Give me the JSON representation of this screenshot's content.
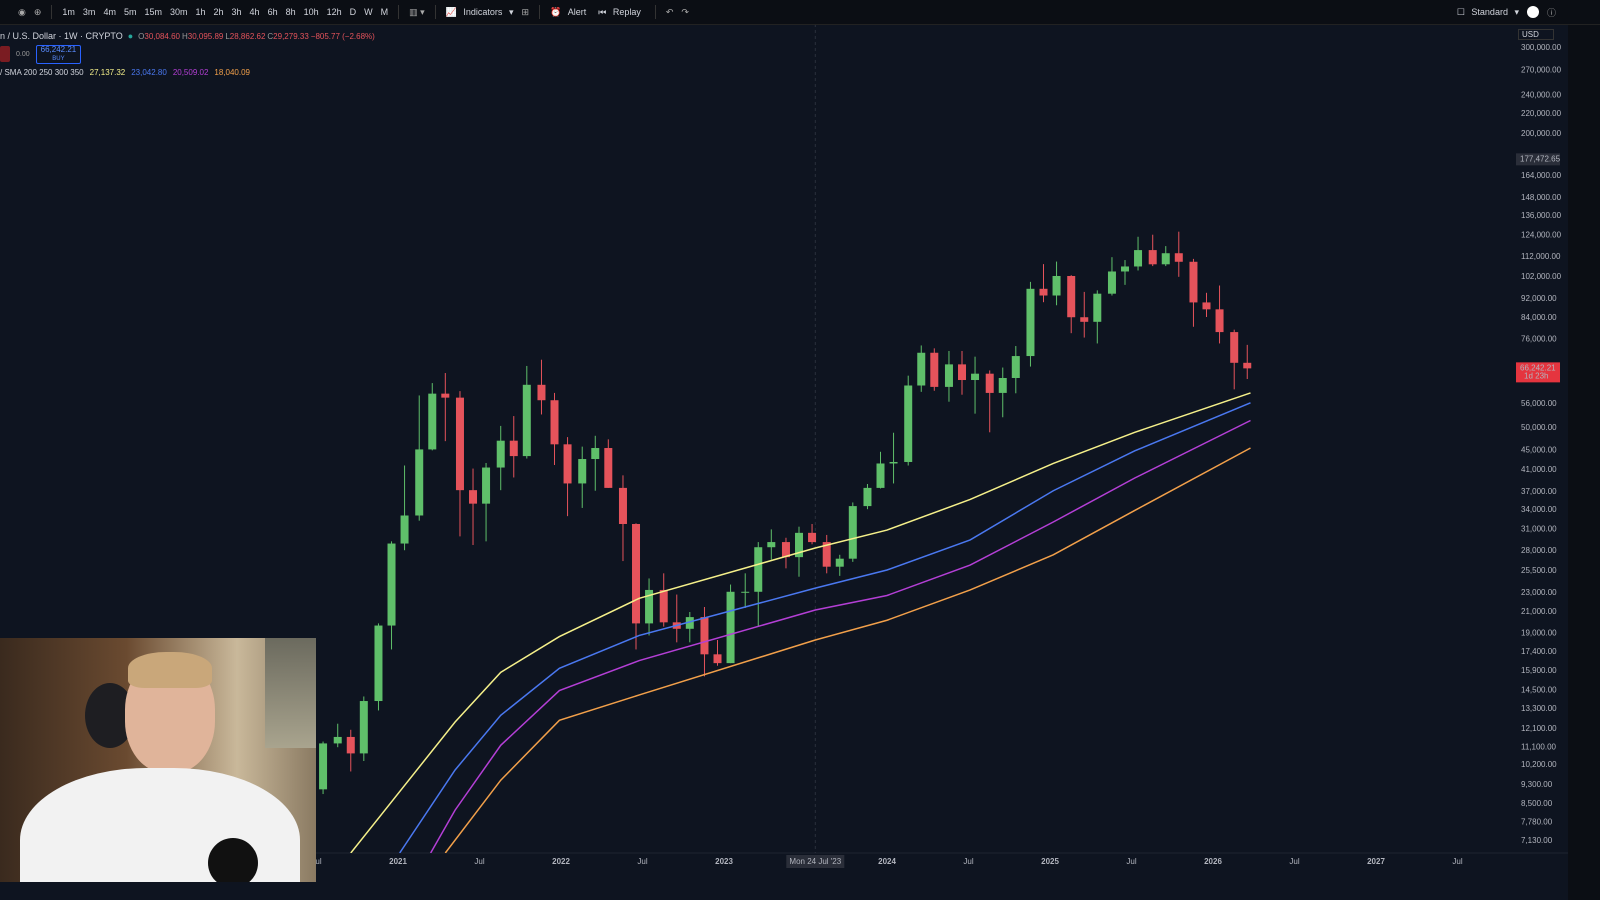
{
  "toolbar": {
    "intervals": [
      "1m",
      "3m",
      "4m",
      "5m",
      "15m",
      "30m",
      "1h",
      "2h",
      "3h",
      "4h",
      "6h",
      "8h",
      "10h",
      "12h",
      "D",
      "W",
      "M"
    ],
    "indicators": "Indicators",
    "alert": "Alert",
    "replay": "Replay",
    "layout": "Standard",
    "currency": "USD"
  },
  "legend": {
    "symbol": "n / U.S. Dollar · 1W · CRYPTO",
    "ohlc": [
      {
        "k": "O",
        "v": "30,084.60"
      },
      {
        "k": "H",
        "v": "30,095.89"
      },
      {
        "k": "L",
        "v": "28,862.62"
      },
      {
        "k": "C",
        "v": "29,279.33"
      }
    ],
    "change": "−805.77 (−2.68%)",
    "buy_price": "66,242.21",
    "buy": "BUY",
    "spread": "0.00",
    "sma_title": "/ SMA 200 250 300 350",
    "sma_values": [
      "27,137.32",
      "23,042.80",
      "20,509.02",
      "18,040.09"
    ]
  },
  "chart_data": {
    "type": "candlestick",
    "log_scale": true,
    "grid": false,
    "up_color": "#5fbf6a",
    "down_color": "#e5535b",
    "xlim": [
      2018.558,
      2027.822
    ],
    "ylim": [
      6740,
      336000
    ],
    "xticks": [
      {
        "value": 2020.5,
        "label": "Jul"
      },
      2021,
      {
        "value": 2021.5,
        "label": "Jul"
      },
      2022,
      {
        "value": 2022.5,
        "label": "Jul"
      },
      2023,
      2024,
      {
        "value": 2024.5,
        "label": "Jul"
      },
      2025,
      {
        "value": 2025.5,
        "label": "Jul"
      },
      2026,
      {
        "value": 2026.5,
        "label": "Jul"
      },
      2027,
      {
        "value": 2027.5,
        "label": "Jul"
      }
    ],
    "yticks": [
      {
        "value": 300000,
        "label": "300,000.00"
      },
      {
        "value": 270000,
        "label": "270,000.00"
      },
      {
        "value": 240000,
        "label": "240,000.00"
      },
      {
        "value": 220000,
        "label": "220,000.00"
      },
      {
        "value": 200000,
        "label": "200,000.00"
      },
      {
        "value": 164000,
        "label": "164,000.00"
      },
      {
        "value": 148000,
        "label": "148,000.00"
      },
      {
        "value": 136000,
        "label": "136,000.00"
      },
      {
        "value": 124000,
        "label": "124,000.00"
      },
      {
        "value": 112000,
        "label": "112,000.00"
      },
      {
        "value": 102000,
        "label": "102,000.00"
      },
      {
        "value": 92000,
        "label": "92,000.00"
      },
      {
        "value": 84000,
        "label": "84,000.00"
      },
      {
        "value": 76000,
        "label": "76,000.00"
      },
      {
        "value": 56000,
        "label": "56,000.00"
      },
      {
        "value": 50000,
        "label": "50,000.00"
      },
      {
        "value": 45000,
        "label": "45,000.00"
      },
      {
        "value": 41000,
        "label": "41,000.00"
      },
      {
        "value": 37000,
        "label": "37,000.00"
      },
      {
        "value": 34000,
        "label": "34,000.00"
      },
      {
        "value": 31000,
        "label": "31,000.00"
      },
      {
        "value": 28000,
        "label": "28,000.00"
      },
      {
        "value": 25500,
        "label": "25,500.00"
      },
      {
        "value": 23000,
        "label": "23,000.00"
      },
      {
        "value": 21000,
        "label": "21,000.00"
      },
      {
        "value": 19000,
        "label": "19,000.00"
      },
      {
        "value": 17400,
        "label": "17,400.00"
      },
      {
        "value": 15900,
        "label": "15,900.00"
      },
      {
        "value": 14500,
        "label": "14,500.00"
      },
      {
        "value": 13300,
        "label": "13,300.00"
      },
      {
        "value": 12100,
        "label": "12,100.00"
      },
      {
        "value": 11100,
        "label": "11,100.00"
      },
      {
        "value": 10200,
        "label": "10,200.00"
      },
      {
        "value": 9300,
        "label": "9,300.00"
      },
      {
        "value": 8500,
        "label": "8,500.00"
      },
      {
        "value": 7780,
        "label": "7,780.00"
      },
      {
        "value": 7130,
        "label": "7,130.00"
      }
    ],
    "price_labels": [
      {
        "value": 177472.65,
        "label": "177,472.65"
      },
      {
        "value": 66242.21,
        "label": "66,242.21",
        "countdown": "1d 23h"
      }
    ],
    "crosshair": {
      "x": 2023.56,
      "label": "Mon 24 Jul '23"
    },
    "candles": [
      {
        "x": 2020.54,
        "open": 9100,
        "high": 11400,
        "low": 8900,
        "close": 11300
      },
      {
        "x": 2020.63,
        "open": 11300,
        "high": 12400,
        "low": 11100,
        "close": 11650
      },
      {
        "x": 2020.71,
        "open": 11650,
        "high": 12050,
        "low": 9900,
        "close": 10780
      },
      {
        "x": 2020.79,
        "open": 10780,
        "high": 14100,
        "low": 10400,
        "close": 13800
      },
      {
        "x": 2020.88,
        "open": 13800,
        "high": 19900,
        "low": 13200,
        "close": 19700
      },
      {
        "x": 2020.96,
        "open": 19700,
        "high": 29300,
        "low": 17600,
        "close": 29000
      },
      {
        "x": 2021.04,
        "open": 29000,
        "high": 41900,
        "low": 28100,
        "close": 33100
      },
      {
        "x": 2021.13,
        "open": 33100,
        "high": 58300,
        "low": 32300,
        "close": 45200
      },
      {
        "x": 2021.21,
        "open": 45200,
        "high": 61800,
        "low": 45000,
        "close": 58800
      },
      {
        "x": 2021.29,
        "open": 58800,
        "high": 64800,
        "low": 47000,
        "close": 57700
      },
      {
        "x": 2021.38,
        "open": 57700,
        "high": 59500,
        "low": 30000,
        "close": 37300
      },
      {
        "x": 2021.46,
        "open": 37300,
        "high": 41300,
        "low": 28800,
        "close": 35000
      },
      {
        "x": 2021.54,
        "open": 35000,
        "high": 42400,
        "low": 29300,
        "close": 41500
      },
      {
        "x": 2021.63,
        "open": 41500,
        "high": 50500,
        "low": 37300,
        "close": 47100
      },
      {
        "x": 2021.71,
        "open": 47100,
        "high": 52900,
        "low": 39600,
        "close": 43800
      },
      {
        "x": 2021.79,
        "open": 43800,
        "high": 67000,
        "low": 43300,
        "close": 61300
      },
      {
        "x": 2021.88,
        "open": 61300,
        "high": 69000,
        "low": 53300,
        "close": 57000
      },
      {
        "x": 2021.96,
        "open": 57000,
        "high": 59000,
        "low": 42000,
        "close": 46300
      },
      {
        "x": 2022.04,
        "open": 46300,
        "high": 47900,
        "low": 33000,
        "close": 38500
      },
      {
        "x": 2022.13,
        "open": 38500,
        "high": 45800,
        "low": 34300,
        "close": 43200
      },
      {
        "x": 2022.21,
        "open": 43200,
        "high": 48200,
        "low": 37200,
        "close": 45500
      },
      {
        "x": 2022.29,
        "open": 45500,
        "high": 47400,
        "low": 37700,
        "close": 37700
      },
      {
        "x": 2022.38,
        "open": 37700,
        "high": 40000,
        "low": 26700,
        "close": 31800
      },
      {
        "x": 2022.46,
        "open": 31800,
        "high": 31900,
        "low": 17600,
        "close": 19900
      },
      {
        "x": 2022.54,
        "open": 19900,
        "high": 24600,
        "low": 18800,
        "close": 23300
      },
      {
        "x": 2022.63,
        "open": 23300,
        "high": 25200,
        "low": 19600,
        "close": 20000
      },
      {
        "x": 2022.71,
        "open": 20000,
        "high": 22800,
        "low": 18200,
        "close": 19400
      },
      {
        "x": 2022.79,
        "open": 19400,
        "high": 21000,
        "low": 18200,
        "close": 20500
      },
      {
        "x": 2022.88,
        "open": 20500,
        "high": 21500,
        "low": 15500,
        "close": 17200
      },
      {
        "x": 2022.96,
        "open": 17200,
        "high": 18400,
        "low": 16300,
        "close": 16500
      },
      {
        "x": 2023.04,
        "open": 16500,
        "high": 23900,
        "low": 16500,
        "close": 23100
      },
      {
        "x": 2023.13,
        "open": 23100,
        "high": 25200,
        "low": 21400,
        "close": 23100
      },
      {
        "x": 2023.21,
        "open": 23100,
        "high": 29200,
        "low": 19600,
        "close": 28500
      },
      {
        "x": 2023.29,
        "open": 28500,
        "high": 31000,
        "low": 26900,
        "close": 29200
      },
      {
        "x": 2023.38,
        "open": 29200,
        "high": 29800,
        "low": 25800,
        "close": 27200
      },
      {
        "x": 2023.46,
        "open": 27200,
        "high": 31400,
        "low": 24800,
        "close": 30500
      },
      {
        "x": 2023.54,
        "open": 30500,
        "high": 31800,
        "low": 28900,
        "close": 29200
      },
      {
        "x": 2023.63,
        "open": 29200,
        "high": 30200,
        "low": 25200,
        "close": 26000
      },
      {
        "x": 2023.71,
        "open": 26000,
        "high": 27500,
        "low": 24900,
        "close": 27000
      },
      {
        "x": 2023.79,
        "open": 27000,
        "high": 35200,
        "low": 26600,
        "close": 34600
      },
      {
        "x": 2023.88,
        "open": 34600,
        "high": 38400,
        "low": 34100,
        "close": 37700
      },
      {
        "x": 2023.96,
        "open": 37700,
        "high": 44700,
        "low": 37600,
        "close": 42300
      },
      {
        "x": 2024.04,
        "open": 42300,
        "high": 48900,
        "low": 38500,
        "close": 42600
      },
      {
        "x": 2024.13,
        "open": 42600,
        "high": 64000,
        "low": 41900,
        "close": 61100
      },
      {
        "x": 2024.21,
        "open": 61100,
        "high": 73800,
        "low": 59300,
        "close": 71300
      },
      {
        "x": 2024.29,
        "open": 71300,
        "high": 72800,
        "low": 59600,
        "close": 60700
      },
      {
        "x": 2024.38,
        "open": 60700,
        "high": 71900,
        "low": 56600,
        "close": 67500
      },
      {
        "x": 2024.46,
        "open": 67500,
        "high": 71900,
        "low": 58500,
        "close": 62700
      },
      {
        "x": 2024.54,
        "open": 62700,
        "high": 70000,
        "low": 53500,
        "close": 64600
      },
      {
        "x": 2024.63,
        "open": 64600,
        "high": 65600,
        "low": 49000,
        "close": 59000
      },
      {
        "x": 2024.71,
        "open": 59000,
        "high": 66500,
        "low": 52600,
        "close": 63300
      },
      {
        "x": 2024.79,
        "open": 63300,
        "high": 73600,
        "low": 58900,
        "close": 70200
      },
      {
        "x": 2024.88,
        "open": 70200,
        "high": 99600,
        "low": 66800,
        "close": 96400
      },
      {
        "x": 2024.96,
        "open": 96400,
        "high": 108300,
        "low": 90500,
        "close": 93400
      },
      {
        "x": 2025.04,
        "open": 93400,
        "high": 109600,
        "low": 89200,
        "close": 102400
      },
      {
        "x": 2025.13,
        "open": 102400,
        "high": 102800,
        "low": 78200,
        "close": 84300
      },
      {
        "x": 2025.21,
        "open": 84300,
        "high": 95000,
        "low": 76600,
        "close": 82500
      },
      {
        "x": 2025.29,
        "open": 82500,
        "high": 95700,
        "low": 74500,
        "close": 94200
      },
      {
        "x": 2025.38,
        "open": 94200,
        "high": 111900,
        "low": 93400,
        "close": 104600
      },
      {
        "x": 2025.46,
        "open": 104600,
        "high": 110400,
        "low": 98200,
        "close": 107100
      },
      {
        "x": 2025.54,
        "open": 107100,
        "high": 123200,
        "low": 105100,
        "close": 115700
      },
      {
        "x": 2025.63,
        "open": 115700,
        "high": 124400,
        "low": 107300,
        "close": 108200
      },
      {
        "x": 2025.71,
        "open": 108200,
        "high": 117900,
        "low": 107300,
        "close": 114000
      },
      {
        "x": 2025.79,
        "open": 114000,
        "high": 126200,
        "low": 102000,
        "close": 109500
      },
      {
        "x": 2025.88,
        "open": 109500,
        "high": 111000,
        "low": 80600,
        "close": 90400
      },
      {
        "x": 2025.96,
        "open": 90400,
        "high": 94600,
        "low": 84400,
        "close": 87500
      },
      {
        "x": 2026.04,
        "open": 87500,
        "high": 97900,
        "low": 74500,
        "close": 78600
      },
      {
        "x": 2026.13,
        "open": 78600,
        "high": 79500,
        "low": 60000,
        "close": 68000
      },
      {
        "x": 2026.21,
        "open": 68000,
        "high": 74000,
        "low": 63000,
        "close": 66242.21
      }
    ],
    "series": [
      {
        "color": "#f5f08a",
        "x": [
          2020.71,
          2021.35,
          2021.63,
          2021.99,
          2022.48,
          2023.56,
          2024.0,
          2024.51,
          2025.02,
          2025.52,
          2026.23
        ],
        "values": [
          6740,
          12500,
          15800,
          18700,
          22400,
          28400,
          30900,
          35700,
          42300,
          49000,
          59000
        ]
      },
      {
        "color": "#4a78f0",
        "x": [
          2021.01,
          2021.35,
          2021.63,
          2021.99,
          2022.48,
          2023.56,
          2024.0,
          2024.51,
          2025.02,
          2025.52,
          2026.23
        ],
        "values": [
          6740,
          9970,
          12900,
          16100,
          18800,
          23500,
          25600,
          29500,
          37200,
          44900,
          56300
        ]
      },
      {
        "color": "#b43fd6",
        "x": [
          2021.2,
          2021.35,
          2021.63,
          2021.99,
          2022.48,
          2023.56,
          2024.0,
          2024.51,
          2025.02,
          2025.52,
          2026.23
        ],
        "values": [
          6740,
          8250,
          11200,
          14500,
          16700,
          21200,
          22700,
          26200,
          32100,
          39500,
          51800
        ]
      },
      {
        "color": "#f2a04a",
        "x": [
          2021.29,
          2021.63,
          2021.99,
          2022.48,
          2023.56,
          2024.0,
          2024.51,
          2025.02,
          2025.52,
          2026.23
        ],
        "values": [
          6740,
          9500,
          12600,
          14200,
          18400,
          20200,
          23300,
          27500,
          33900,
          45500
        ]
      }
    ]
  }
}
